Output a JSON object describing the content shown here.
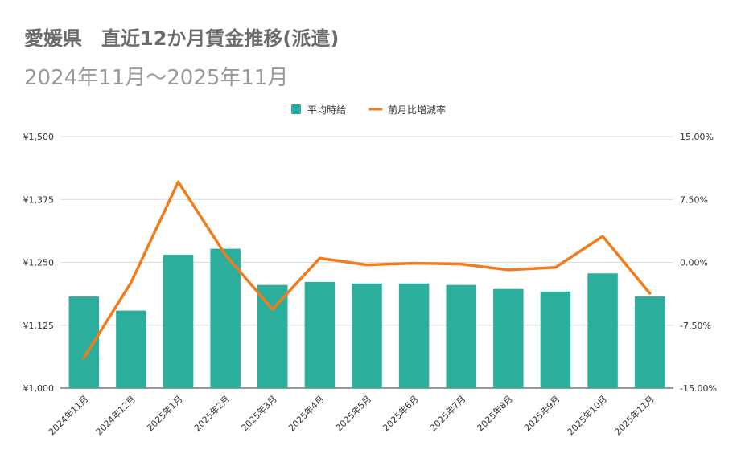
{
  "chart_data": {
    "type": "bar",
    "title": "愛媛県　直近12か月賃金推移(派遣)",
    "subtitle": "2024年11月～2025年11月",
    "categories": [
      "2024年11月",
      "2024年12月",
      "2025年1月",
      "2025年2月",
      "2025年3月",
      "2025年4月",
      "2025年5月",
      "2025年6月",
      "2025年7月",
      "2025年8月",
      "2025年9月",
      "2025年10月",
      "2025年11月"
    ],
    "series": [
      {
        "name": "平均時給",
        "type": "bar",
        "axis": "left",
        "color": "#2bae9c",
        "values": [
          1182,
          1154,
          1265,
          1277,
          1205,
          1211,
          1208,
          1208,
          1205,
          1197,
          1192,
          1228,
          1182
        ]
      },
      {
        "name": "前月比増減率",
        "type": "line",
        "axis": "right",
        "color": "#f07d1c",
        "unit": "%",
        "values": [
          -11.4,
          -2.4,
          9.6,
          0.9,
          -5.6,
          0.5,
          -0.3,
          -0.1,
          -0.2,
          -0.9,
          -0.6,
          3.1,
          -3.7
        ]
      }
    ],
    "y_left": {
      "min": 1000,
      "max": 1500,
      "ticks": [
        1000,
        1125,
        1250,
        1375,
        1500
      ],
      "tick_labels": [
        "¥1,000",
        "¥1,125",
        "¥1,250",
        "¥1,375",
        "¥1,500"
      ]
    },
    "y_right": {
      "min": -15,
      "max": 15,
      "ticks": [
        -15,
        -7.5,
        0,
        7.5,
        15
      ],
      "tick_labels": [
        "-15.00%",
        "-7.50%",
        "0.00%",
        "7.50%",
        "15.00%"
      ]
    },
    "legend_position": "top-center",
    "grid": true
  }
}
